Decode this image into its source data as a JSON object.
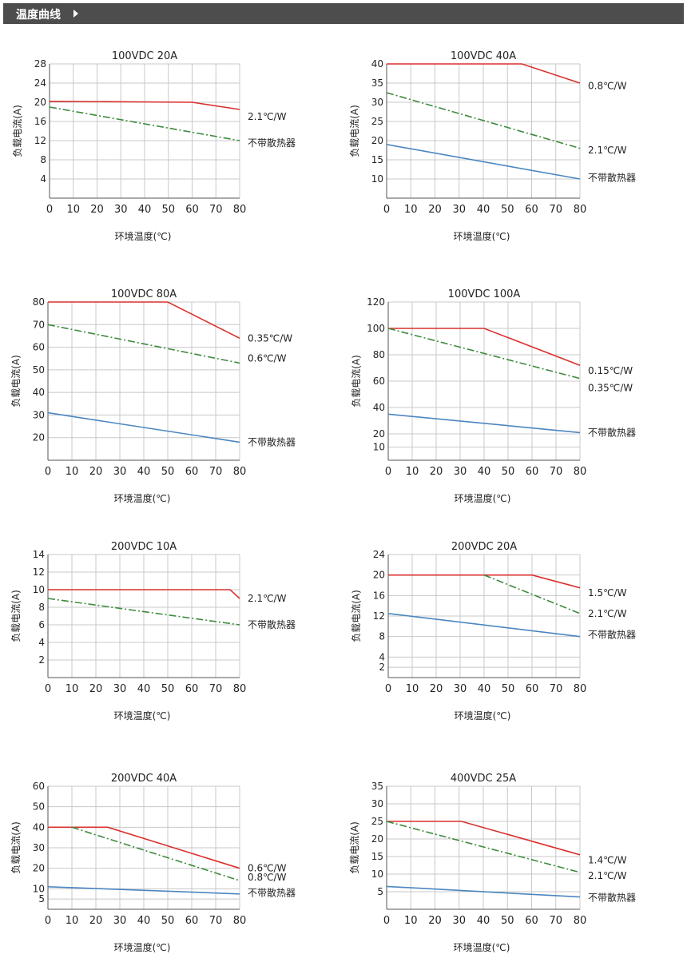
{
  "header": {
    "title": "温度曲线"
  },
  "colors": {
    "red": "#d9312f",
    "green": "#3d8a3d",
    "blue": "#4b86c0",
    "grid": "#c8c8c8",
    "axis": "#555555",
    "header_bg": "#4d4d4d"
  },
  "chart_data": [
    {
      "type": "line",
      "title": "100VDC 20A",
      "xlabel": "环境温度(℃)",
      "ylabel": "负载电流(A)",
      "x_ticks": [
        0,
        10,
        20,
        30,
        40,
        50,
        60,
        70,
        80
      ],
      "y_ticks": [
        4,
        8,
        12,
        16,
        20,
        24,
        28
      ],
      "xlim": [
        0,
        80
      ],
      "ylim": [
        0,
        28
      ],
      "series": [
        {
          "name": "2.1℃/W",
          "color": "red",
          "style": "solid",
          "points": [
            [
              0,
              20.2
            ],
            [
              60,
              20.0
            ],
            [
              80,
              18.5
            ]
          ]
        },
        {
          "name": "不带散热器",
          "color": "green",
          "style": "dashdot",
          "points": [
            [
              0,
              19.0
            ],
            [
              80,
              12.0
            ]
          ]
        }
      ],
      "labels": [
        {
          "text": "2.1℃/W",
          "y": 17.0
        },
        {
          "text": "不带散热器",
          "y": 11.5
        }
      ]
    },
    {
      "type": "line",
      "title": "100VDC 40A",
      "xlabel": "环境温度(℃)",
      "ylabel": "负载电流(A)",
      "x_ticks": [
        0,
        10,
        20,
        30,
        40,
        50,
        60,
        70,
        80
      ],
      "y_ticks": [
        10,
        15,
        20,
        25,
        30,
        35,
        40
      ],
      "xlim": [
        0,
        80
      ],
      "ylim": [
        5,
        40
      ],
      "series": [
        {
          "name": "0.8℃/W",
          "color": "red",
          "style": "solid",
          "points": [
            [
              0,
              40.0
            ],
            [
              56,
              40.0
            ],
            [
              80,
              35.0
            ]
          ]
        },
        {
          "name": "2.1℃/W",
          "color": "green",
          "style": "dashdot",
          "points": [
            [
              0,
              32.5
            ],
            [
              80,
              18.0
            ]
          ]
        },
        {
          "name": "不带散热器",
          "color": "blue",
          "style": "solid",
          "points": [
            [
              0,
              19.0
            ],
            [
              80,
              10.0
            ]
          ]
        }
      ],
      "labels": [
        {
          "text": "0.8℃/W",
          "y": 34.3
        },
        {
          "text": "2.1℃/W",
          "y": 17.5
        },
        {
          "text": "不带散热器",
          "y": 10.3
        }
      ]
    },
    {
      "type": "line",
      "title": "100VDC 80A",
      "xlabel": "环境温度(℃)",
      "ylabel": "负载电流(A)",
      "x_ticks": [
        0,
        10,
        20,
        30,
        40,
        50,
        60,
        70,
        80
      ],
      "y_ticks": [
        20,
        30,
        40,
        50,
        60,
        70,
        80
      ],
      "xlim": [
        0,
        80
      ],
      "ylim": [
        10,
        80
      ],
      "series": [
        {
          "name": "0.35℃/W",
          "color": "red",
          "style": "solid",
          "points": [
            [
              0,
              80.0
            ],
            [
              50,
              80.0
            ],
            [
              80,
              64.0
            ]
          ]
        },
        {
          "name": "0.6℃/W",
          "color": "green",
          "style": "dashdot",
          "points": [
            [
              0,
              70.0
            ],
            [
              80,
              53.0
            ]
          ]
        },
        {
          "name": "不带散热器",
          "color": "blue",
          "style": "solid",
          "points": [
            [
              0,
              31.0
            ],
            [
              80,
              18.0
            ]
          ]
        }
      ],
      "labels": [
        {
          "text": "0.35℃/W",
          "y": 64.0
        },
        {
          "text": "0.6℃/W",
          "y": 55.0
        },
        {
          "text": "不带散热器",
          "y": 18.0
        }
      ]
    },
    {
      "type": "line",
      "title": "100VDC 100A",
      "xlabel": "环境温度(℃)",
      "ylabel": "负载电流(A)",
      "x_ticks": [
        0,
        10,
        20,
        30,
        40,
        50,
        60,
        70,
        80
      ],
      "y_ticks": [
        10,
        20,
        40,
        60,
        80,
        100,
        120
      ],
      "xlim": [
        0,
        80
      ],
      "ylim": [
        0,
        120
      ],
      "series": [
        {
          "name": "0.15℃/W",
          "color": "red",
          "style": "solid",
          "points": [
            [
              0,
              100.0
            ],
            [
              40,
              100.0
            ],
            [
              80,
              72.0
            ]
          ]
        },
        {
          "name": "0.35℃/W",
          "color": "green",
          "style": "dashdot",
          "points": [
            [
              0,
              100.0
            ],
            [
              80,
              62.0
            ]
          ]
        },
        {
          "name": "不带散热器",
          "color": "blue",
          "style": "solid",
          "points": [
            [
              0,
              35.0
            ],
            [
              80,
              21.0
            ]
          ]
        }
      ],
      "labels": [
        {
          "text": "0.15℃/W",
          "y": 68.0
        },
        {
          "text": "0.35℃/W",
          "y": 55.0
        },
        {
          "text": "不带散热器",
          "y": 21.0
        }
      ]
    },
    {
      "type": "line",
      "title": "200VDC 10A",
      "xlabel": "环境温度(℃)",
      "ylabel": "负载电流(A)",
      "x_ticks": [
        0,
        10,
        20,
        30,
        40,
        50,
        60,
        70,
        80
      ],
      "y_ticks": [
        2,
        4,
        6,
        8,
        10,
        12,
        14
      ],
      "xlim": [
        0,
        80
      ],
      "ylim": [
        0,
        14
      ],
      "series": [
        {
          "name": "2.1℃/W",
          "color": "red",
          "style": "solid",
          "points": [
            [
              0,
              10.0
            ],
            [
              76,
              10.0
            ],
            [
              80,
              9.0
            ]
          ]
        },
        {
          "name": "不带散热器",
          "color": "green",
          "style": "dashdot",
          "points": [
            [
              0,
              9.0
            ],
            [
              80,
              6.0
            ]
          ]
        }
      ],
      "labels": [
        {
          "text": "2.1℃/W",
          "y": 9.0
        },
        {
          "text": "不带散热器",
          "y": 6.0
        }
      ]
    },
    {
      "type": "line",
      "title": "200VDC 20A",
      "xlabel": "环境温度(℃)",
      "ylabel": "负载电流(A)",
      "x_ticks": [
        0,
        10,
        20,
        30,
        40,
        50,
        60,
        70,
        80
      ],
      "y_ticks": [
        2,
        4,
        8,
        12,
        16,
        20,
        24
      ],
      "xlim": [
        0,
        80
      ],
      "ylim": [
        0,
        24
      ],
      "series": [
        {
          "name": "1.5℃/W",
          "color": "red",
          "style": "solid",
          "points": [
            [
              0,
              20.0
            ],
            [
              60,
              20.0
            ],
            [
              80,
              17.5
            ]
          ]
        },
        {
          "name": "2.1℃/W",
          "color": "green",
          "style": "dashdot",
          "points": [
            [
              40,
              20.0
            ],
            [
              80,
              12.5
            ]
          ]
        },
        {
          "name": "不带散热器",
          "color": "blue",
          "style": "solid",
          "points": [
            [
              0,
              12.5
            ],
            [
              80,
              8.0
            ]
          ]
        }
      ],
      "labels": [
        {
          "text": "1.5℃/W",
          "y": 16.5
        },
        {
          "text": "2.1℃/W",
          "y": 12.5
        },
        {
          "text": "不带散热器",
          "y": 8.3
        }
      ]
    },
    {
      "type": "line",
      "title": "200VDC 40A",
      "xlabel": "环境温度(℃)",
      "ylabel": "负载电流(A)",
      "x_ticks": [
        0,
        10,
        20,
        30,
        40,
        50,
        60,
        70,
        80
      ],
      "y_ticks": [
        5,
        10,
        20,
        30,
        40,
        50,
        60
      ],
      "xlim": [
        0,
        80
      ],
      "ylim": [
        0,
        60
      ],
      "series": [
        {
          "name": "0.6℃/W",
          "color": "red",
          "style": "solid",
          "points": [
            [
              0,
              40.0
            ],
            [
              25,
              40.0
            ],
            [
              80,
              20.0
            ]
          ]
        },
        {
          "name": "0.8℃/W",
          "color": "green",
          "style": "dashdot",
          "points": [
            [
              10,
              40.0
            ],
            [
              80,
              14.0
            ]
          ]
        },
        {
          "name": "不带散热器",
          "color": "blue",
          "style": "solid",
          "points": [
            [
              0,
              11.0
            ],
            [
              80,
              7.5
            ]
          ]
        }
      ],
      "labels": [
        {
          "text": "0.6℃/W",
          "y": 20.0
        },
        {
          "text": "0.8℃/W",
          "y": 15.5
        },
        {
          "text": "不带散热器",
          "y": 8.0
        }
      ]
    },
    {
      "type": "line",
      "title": "400VDC 25A",
      "xlabel": "环境温度(℃)",
      "ylabel": "负载电流(A)",
      "x_ticks": [
        0,
        10,
        20,
        30,
        40,
        50,
        60,
        70,
        80
      ],
      "y_ticks": [
        5,
        10,
        15,
        20,
        25,
        30,
        35
      ],
      "xlim": [
        0,
        80
      ],
      "ylim": [
        0,
        35
      ],
      "series": [
        {
          "name": "1.4℃/W",
          "color": "red",
          "style": "solid",
          "points": [
            [
              0,
              25.0
            ],
            [
              31,
              25.0
            ],
            [
              80,
              15.5
            ]
          ]
        },
        {
          "name": "2.1℃/W",
          "color": "green",
          "style": "dashdot",
          "points": [
            [
              0,
              25.0
            ],
            [
              80,
              10.5
            ]
          ]
        },
        {
          "name": "不带散热器",
          "color": "blue",
          "style": "solid",
          "points": [
            [
              0,
              6.5
            ],
            [
              80,
              3.5
            ]
          ]
        }
      ],
      "labels": [
        {
          "text": "1.4℃/W",
          "y": 14.0
        },
        {
          "text": "2.1℃/W",
          "y": 9.5
        },
        {
          "text": "不带散热器",
          "y": 3.3
        }
      ]
    }
  ]
}
